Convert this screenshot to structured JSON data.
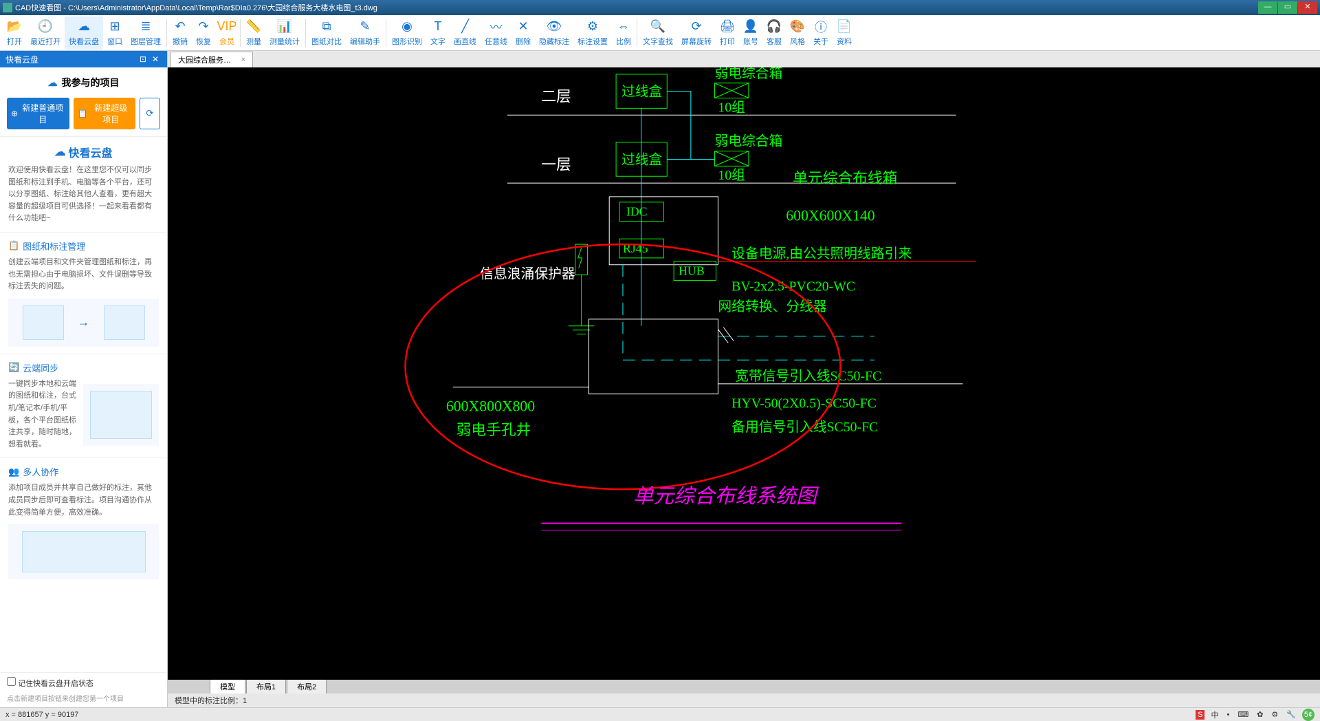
{
  "title": "CAD快速看图 - C:\\Users\\Administrator\\AppData\\Local\\Temp\\Rar$DIa0.276\\大园综合服务大楼水电图_t3.dwg",
  "toolbar": [
    {
      "label": "打开",
      "icon": "📂"
    },
    {
      "label": "最近打开",
      "icon": "🕘"
    },
    {
      "label": "快看云盘",
      "icon": "☁",
      "hl": true
    },
    {
      "label": "窗口",
      "icon": "⊞"
    },
    {
      "label": "图层管理",
      "icon": "≣"
    },
    {
      "sep": true
    },
    {
      "label": "撤销",
      "icon": "↶"
    },
    {
      "label": "恢复",
      "icon": "↷"
    },
    {
      "label": "会员",
      "icon": "VIP",
      "gold": true
    },
    {
      "sep": true
    },
    {
      "label": "测量",
      "icon": "📏"
    },
    {
      "label": "测量统计",
      "icon": "📊"
    },
    {
      "sep": true
    },
    {
      "label": "图纸对比",
      "icon": "⧉"
    },
    {
      "label": "编辑助手",
      "icon": "✎"
    },
    {
      "sep": true
    },
    {
      "label": "图形识别",
      "icon": "◉"
    },
    {
      "label": "文字",
      "icon": "T"
    },
    {
      "label": "画直线",
      "icon": "╱"
    },
    {
      "label": "任意线",
      "icon": "〰"
    },
    {
      "label": "删除",
      "icon": "✕"
    },
    {
      "label": "隐藏标注",
      "icon": "👁"
    },
    {
      "label": "标注设置",
      "icon": "⚙"
    },
    {
      "label": "比例",
      "icon": "⇔"
    },
    {
      "sep": true
    },
    {
      "label": "文字查找",
      "icon": "🔍"
    },
    {
      "label": "屏幕旋转",
      "icon": "⟳"
    },
    {
      "label": "打印",
      "icon": "🖨"
    },
    {
      "label": "账号",
      "icon": "👤"
    },
    {
      "label": "客服",
      "icon": "🎧"
    },
    {
      "label": "风格",
      "icon": "🎨"
    },
    {
      "label": "关于",
      "icon": "ⓘ"
    },
    {
      "label": "资料",
      "icon": "📄"
    }
  ],
  "sidebar": {
    "panel_title": "快看云盘",
    "proj_title": "我参与的项目",
    "btn_new": "新建普通项目",
    "btn_super": "新建超级项目",
    "logo_text": "快看云盘",
    "welcome": "欢迎使用快看云盘！在这里您不仅可以同步图纸和标注到手机、电脑等各个平台，还可以分享图纸、标注给其他人查看，更有超大容量的超级项目可供选择！一起来看看都有什么功能吧~",
    "sec1_title": "图纸和标注管理",
    "sec1_body": "创建云端项目和文件夹管理图纸和标注，再也无需担心由于电脑损坏、文件误删等导致标注丢失的问题。",
    "sec2_title": "云端同步",
    "sec2_body": "一键同步本地和云端的图纸和标注，台式机/笔记本/手机/平板，各个平台图纸标注共享，随时随地，想看就看。",
    "sec3_title": "多人协作",
    "sec3_body": "添加项目成员并共享自己做好的标注，其他成员同步后即可查看标注。项目沟通协作从此变得简单方便，高效准确。",
    "chk": "记住快看云盘开启状态",
    "hint": "点击新建项目按钮来创建您第一个项目"
  },
  "tab_name": "大园综合服务大楼水…",
  "bottom_tabs": [
    "模型",
    "布局1",
    "布局2"
  ],
  "scale_note": "模型中的标注比例：1",
  "status": "x = 881657  y = 90197",
  "cad": {
    "colors": {
      "green": "#00ff00",
      "cyan": "#00ffff",
      "white": "#ffffff",
      "red": "#ff0000",
      "magenta": "#ff00ff",
      "darkred": "#cc0000"
    },
    "texts": {
      "floor2": "二层",
      "floor1": "一层",
      "jxbox": "过线盒",
      "rdbox": "弱电综合箱",
      "grp10": "10组",
      "idc": "IDC",
      "rj45": "RJ45",
      "hub": "HUB",
      "surge": "信息浪涌保护器",
      "unitbox": "单元综合布线箱",
      "dim1": "600X600X140",
      "power": "设备电源,由公共照明线路引来",
      "bv": "BV-2x2.5-PVC20-WC",
      "netconv": "网络转换、分线器",
      "broadband": "宽带信号引入线SC50-FC",
      "hyv": "HYV-50(2X0.5)-SC50-FC",
      "backup": "备用信号引入线SC50-FC",
      "dim2": "600X800X800",
      "manhole": "弱电手孔井",
      "systitle": "单元综合布线系统图"
    }
  }
}
